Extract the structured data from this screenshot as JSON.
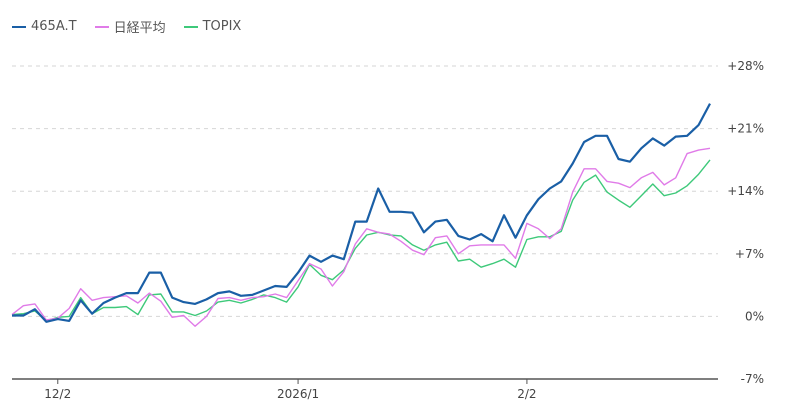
{
  "chart_data": {
    "type": "line",
    "title": "",
    "xlabel": "",
    "ylabel": "",
    "ylim": [
      -7,
      28
    ],
    "yticks": [
      "+28%",
      "+21%",
      "+14%",
      "+7%",
      "0%",
      "-7%"
    ],
    "ytick_values": [
      28,
      21,
      14,
      7,
      0,
      -7
    ],
    "xticks": [
      {
        "label": "12/2",
        "index": 4
      },
      {
        "label": "2026/1",
        "index": 25
      },
      {
        "label": "2/2",
        "index": 45
      }
    ],
    "grid": true,
    "legend_position": "top-left",
    "series": [
      {
        "name": "465A.T",
        "color": "#1a5fa6",
        "values": [
          0.1,
          0.1,
          0.8,
          -0.6,
          -0.3,
          -0.5,
          1.8,
          0.3,
          1.5,
          2.1,
          2.6,
          2.6,
          4.9,
          4.9,
          2.1,
          1.6,
          1.4,
          1.9,
          2.6,
          2.8,
          2.3,
          2.4,
          2.9,
          3.4,
          3.3,
          4.9,
          6.8,
          6.1,
          6.8,
          6.4,
          10.6,
          10.6,
          14.3,
          11.7,
          11.7,
          11.6,
          9.4,
          10.6,
          10.8,
          9.0,
          8.6,
          9.2,
          8.4,
          11.3,
          8.8,
          11.3,
          13.1,
          14.3,
          15.1,
          17.1,
          19.5,
          20.2,
          20.2,
          17.6,
          17.3,
          18.8,
          19.9,
          19.1,
          20.1,
          20.2,
          21.4,
          23.8
        ]
      },
      {
        "name": "日経平均",
        "color": "#e07be8",
        "values": [
          0.2,
          1.2,
          1.4,
          -0.4,
          -0.2,
          0.9,
          3.1,
          1.8,
          2.1,
          2.2,
          2.3,
          1.5,
          2.6,
          1.7,
          -0.1,
          0.1,
          -1.1,
          0.0,
          2.0,
          2.1,
          1.8,
          2.1,
          2.2,
          2.5,
          2.1,
          4.0,
          5.9,
          5.3,
          3.4,
          5.0,
          8.1,
          9.8,
          9.4,
          9.2,
          8.4,
          7.4,
          6.9,
          8.8,
          9.0,
          7.0,
          7.9,
          8.0,
          8.0,
          8.0,
          6.5,
          10.4,
          9.8,
          8.7,
          9.8,
          13.9,
          16.5,
          16.5,
          15.1,
          14.9,
          14.4,
          15.5,
          16.1,
          14.7,
          15.5,
          18.2,
          18.6,
          18.8
        ]
      },
      {
        "name": "TOPIX",
        "color": "#3ec97a",
        "values": [
          0.2,
          0.3,
          0.6,
          -0.5,
          -0.1,
          0.0,
          2.1,
          0.3,
          1.0,
          1.0,
          1.1,
          0.2,
          2.4,
          2.5,
          0.5,
          0.5,
          0.1,
          0.6,
          1.6,
          1.8,
          1.5,
          1.9,
          2.4,
          2.1,
          1.6,
          3.3,
          5.8,
          4.6,
          4.1,
          5.2,
          7.6,
          9.1,
          9.4,
          9.1,
          9.0,
          8.0,
          7.4,
          8.0,
          8.3,
          6.2,
          6.4,
          5.5,
          5.9,
          6.4,
          5.5,
          8.6,
          8.9,
          8.9,
          9.5,
          13.0,
          15.0,
          15.8,
          13.9,
          13.0,
          12.2,
          13.5,
          14.8,
          13.5,
          13.8,
          14.6,
          15.9,
          17.5
        ]
      }
    ]
  }
}
